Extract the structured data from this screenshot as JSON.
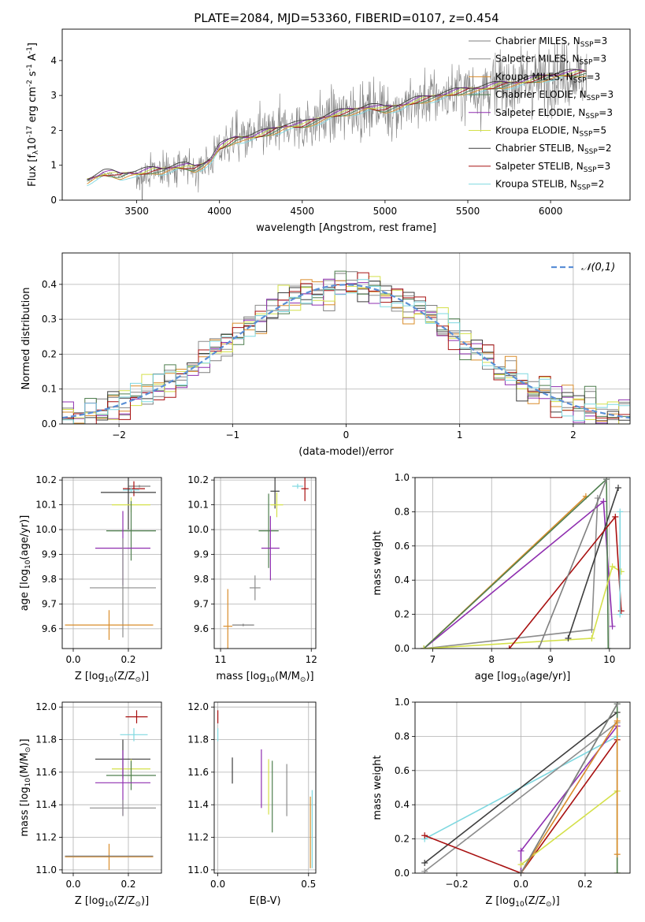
{
  "figure_title": "PLATE=2084, MJD=53360, FIBERID=0107, z=0.454",
  "colors": {
    "series": [
      "#7f7f7f",
      "#8c8c8c",
      "#d98c2a",
      "#4f7f4f",
      "#8f2fb0",
      "#d4e04a",
      "#3d3d3d",
      "#a81010",
      "#7fd8e0"
    ],
    "gaussian": "#5b8fd6",
    "grid": "#b0b0b0"
  },
  "chart_data": [
    {
      "id": "spectrum",
      "type": "line",
      "xlabel": "wavelength [Angstrom, rest frame]",
      "ylabel": "Flux [f$_\\lambda$10$^{-17}$ erg cm$^{-2}$ s$^{-1}$ A$^{-1}$]",
      "xlim": [
        3050,
        6480
      ],
      "ylim": [
        0,
        4.9
      ],
      "xticks": [
        3500,
        4000,
        4500,
        5000,
        5500,
        6000
      ],
      "yticks": [
        0,
        1,
        2,
        3,
        4
      ],
      "legend_position": "right",
      "legend": [
        {
          "name": "Chabrier MILES, N$_{SSP}$=3"
        },
        {
          "name": "Salpeter MILES, N$_{SSP}$=3"
        },
        {
          "name": "Kroupa MILES, N$_{SSP}$=3"
        },
        {
          "name": "Chabrier ELODIE, N$_{SSP}$=3"
        },
        {
          "name": "Salpeter ELODIE, N$_{SSP}$=3"
        },
        {
          "name": "Kroupa ELODIE, N$_{SSP}$=5"
        },
        {
          "name": "Chabrier STELIB, N$_{SSP}$=2"
        },
        {
          "name": "Salpeter STELIB, N$_{SSP}$=3"
        },
        {
          "name": "Kroupa STELIB, N$_{SSP}$=2"
        }
      ],
      "continuum": {
        "x": [
          3200,
          3250,
          3300,
          3350,
          3400,
          3450,
          3500,
          3550,
          3600,
          3650,
          3700,
          3750,
          3800,
          3850,
          3900,
          3950,
          4000,
          4100,
          4200,
          4300,
          4400,
          4500,
          4600,
          4700,
          4800,
          4900,
          5000,
          5100,
          5200,
          5300,
          5400,
          5500,
          5600,
          5700,
          5800,
          5900,
          6000,
          6100,
          6200
        ],
        "y": [
          0.55,
          0.65,
          0.75,
          0.75,
          0.7,
          0.75,
          0.75,
          0.8,
          0.85,
          0.85,
          0.9,
          0.95,
          0.95,
          0.9,
          1.0,
          1.15,
          1.5,
          1.75,
          1.8,
          1.95,
          2.1,
          2.15,
          2.3,
          2.45,
          2.55,
          2.65,
          2.6,
          2.7,
          2.85,
          2.95,
          3.05,
          3.15,
          3.2,
          3.3,
          3.35,
          3.45,
          3.55,
          3.6,
          3.65
        ]
      },
      "data_start": 3200,
      "data_end": 6220
    },
    {
      "id": "residuals",
      "type": "histogram",
      "xlabel": "(data-model)/error",
      "ylabel": "Normed distribution",
      "xlim": [
        -2.5,
        2.5
      ],
      "ylim": [
        0,
        0.49
      ],
      "xticks": [
        -2,
        -1,
        0,
        1,
        2
      ],
      "yticks": [
        0.0,
        0.1,
        0.2,
        0.3,
        0.4
      ],
      "legend": [
        {
          "name": "$\\mathcal{N}(0,1)$"
        }
      ],
      "legend_position": "top-right",
      "bin_width": 0.1
    },
    {
      "id": "age-vs-Z",
      "type": "errorbar",
      "xlabel": "Z [log$_{10}$(Z/Z$_\\odot$)]",
      "ylabel": "age  [log$_{10}$(age/yr)]",
      "xlim": [
        -0.04,
        0.32
      ],
      "ylim": [
        9.52,
        10.21
      ],
      "xticks": [
        0.0,
        0.2
      ],
      "yticks": [
        9.6,
        9.7,
        9.8,
        9.9,
        10.0,
        10.1,
        10.2
      ],
      "points": [
        {
          "x": 0.24,
          "y": 10.175,
          "xerr": 0.04,
          "yerr": 0.005,
          "c": 0
        },
        {
          "x": 0.22,
          "y": 10.165,
          "xerr": 0.04,
          "yerr": 0.03,
          "c": 7
        },
        {
          "x": 0.21,
          "y": 10.16,
          "xerr": 0.03,
          "yerr": 0.01,
          "c": 8
        },
        {
          "x": 0.2,
          "y": 10.15,
          "xerr": 0.1,
          "yerr": 0.15,
          "c": 6
        },
        {
          "x": 0.21,
          "y": 10.1,
          "xerr": 0.07,
          "yerr": 0.03,
          "c": 5
        },
        {
          "x": 0.21,
          "y": 9.995,
          "xerr": 0.09,
          "yerr": 0.12,
          "c": 3
        },
        {
          "x": 0.18,
          "y": 9.925,
          "xerr": 0.1,
          "yerr": 0.15,
          "c": 4
        },
        {
          "x": 0.18,
          "y": 9.765,
          "xerr": 0.12,
          "yerr": 0.2,
          "c": 1
        },
        {
          "x": 0.13,
          "y": 9.615,
          "xerr": 0.16,
          "yerr": 0.06,
          "c": 2
        }
      ]
    },
    {
      "id": "age-vs-mass",
      "type": "errorbar",
      "xlabel": "mass [log$_{10}$(M/M$_\\odot$)]",
      "ylabel": "",
      "xlim": [
        10.93,
        12.05
      ],
      "ylim": [
        9.52,
        10.21
      ],
      "xticks": [
        11,
        12
      ],
      "yticks": [
        9.6,
        9.7,
        9.8,
        9.9,
        10.0,
        10.1,
        10.2
      ],
      "points": [
        {
          "x": 11.85,
          "y": 10.175,
          "xerr": 0.06,
          "yerr": 0.01,
          "c": 8
        },
        {
          "x": 11.93,
          "y": 10.165,
          "xerr": 0.04,
          "yerr": 0.05,
          "c": 7
        },
        {
          "x": 11.6,
          "y": 10.155,
          "xerr": 0.05,
          "yerr": 0.07,
          "c": 6
        },
        {
          "x": 11.62,
          "y": 10.1,
          "xerr": 0.07,
          "yerr": 0.05,
          "c": 5
        },
        {
          "x": 11.53,
          "y": 9.995,
          "xerr": 0.11,
          "yerr": 0.15,
          "c": 3
        },
        {
          "x": 11.55,
          "y": 9.925,
          "xerr": 0.1,
          "yerr": 0.13,
          "c": 4
        },
        {
          "x": 11.38,
          "y": 9.765,
          "xerr": 0.06,
          "yerr": 0.05,
          "c": 1
        },
        {
          "x": 11.08,
          "y": 9.61,
          "xerr": 0.05,
          "yerr": 0.15,
          "c": 2
        },
        {
          "x": 11.25,
          "y": 9.615,
          "xerr": 0.12,
          "yerr": 0.005,
          "c": 0
        }
      ]
    },
    {
      "id": "weight-vs-age",
      "type": "line",
      "xlabel": "age  [log$_{10}$(age/yr)]",
      "ylabel": "mass weight",
      "xlim": [
        6.7,
        10.35
      ],
      "ylim": [
        0,
        1.0
      ],
      "xticks": [
        7,
        8,
        9,
        10
      ],
      "yticks": [
        0.0,
        0.2,
        0.4,
        0.6,
        0.8,
        1.0
      ],
      "series": [
        {
          "c": 2,
          "x": [
            6.85,
            9.6
          ],
          "y": [
            0.0,
            0.89
          ]
        },
        {
          "c": 1,
          "x": [
            6.85,
            9.7,
            9.8
          ],
          "y": [
            0.0,
            0.11,
            0.88
          ]
        },
        {
          "c": 4,
          "x": [
            6.85,
            9.9,
            10.05
          ],
          "y": [
            0.0,
            0.86,
            0.13
          ]
        },
        {
          "c": 3,
          "x": [
            6.85,
            9.95,
            9.98
          ],
          "y": [
            0.0,
            0.99,
            0.0
          ]
        },
        {
          "c": 5,
          "x": [
            6.85,
            9.7,
            10.05,
            10.2
          ],
          "y": [
            0.0,
            0.06,
            0.48,
            0.45
          ]
        },
        {
          "c": 6,
          "x": [
            9.3,
            10.15
          ],
          "y": [
            0.06,
            0.94
          ]
        },
        {
          "c": 7,
          "x": [
            8.3,
            10.1,
            10.2
          ],
          "y": [
            0.0,
            0.77,
            0.22
          ]
        },
        {
          "c": 8,
          "x": [
            10.18,
            10.18
          ],
          "y": [
            0.8,
            0.2
          ]
        },
        {
          "c": 0,
          "x": [
            8.8,
            9.95
          ],
          "y": [
            0.0,
            0.99
          ]
        }
      ]
    },
    {
      "id": "mass-vs-Z",
      "type": "errorbar",
      "xlabel": "Z [log$_{10}$(Z/Z$_\\odot$)]",
      "ylabel": "mass [log$_{10}$(M/M$_\\odot$)]",
      "xlim": [
        -0.04,
        0.32
      ],
      "ylim": [
        10.98,
        12.03
      ],
      "xticks": [
        0.0,
        0.2
      ],
      "yticks": [
        11.0,
        11.2,
        11.4,
        11.6,
        11.8,
        12.0
      ],
      "points": [
        {
          "x": 0.23,
          "y": 11.94,
          "xerr": 0.04,
          "yerr": 0.04,
          "c": 7
        },
        {
          "x": 0.22,
          "y": 11.83,
          "xerr": 0.05,
          "yerr": 0.04,
          "c": 8
        },
        {
          "x": 0.18,
          "y": 11.68,
          "xerr": 0.1,
          "yerr": 0.12,
          "c": 6
        },
        {
          "x": 0.21,
          "y": 11.62,
          "xerr": 0.07,
          "yerr": 0.06,
          "c": 5
        },
        {
          "x": 0.21,
          "y": 11.58,
          "xerr": 0.09,
          "yerr": 0.09,
          "c": 3
        },
        {
          "x": 0.18,
          "y": 11.535,
          "xerr": 0.1,
          "yerr": 0.2,
          "c": 4
        },
        {
          "x": 0.18,
          "y": 11.38,
          "xerr": 0.12,
          "yerr": 0.05,
          "c": 1
        },
        {
          "x": 0.13,
          "y": 11.08,
          "xerr": 0.16,
          "yerr": 0.08,
          "c": 2
        },
        {
          "x": 0.13,
          "y": 11.085,
          "xerr": 0.16,
          "yerr": 0.005,
          "c": 0
        }
      ]
    },
    {
      "id": "mass-vs-ebv",
      "type": "errorbar",
      "xlabel": "E(B-V)",
      "ylabel": "",
      "xlim": [
        -0.02,
        0.54
      ],
      "ylim": [
        10.98,
        12.03
      ],
      "xticks": [
        0.0,
        0.5
      ],
      "yticks": [
        11.0,
        11.2,
        11.4,
        11.6,
        11.8,
        12.0
      ],
      "points": [
        {
          "x": 0.0,
          "y": 11.94,
          "xerr": 0,
          "yerr": 0.04,
          "c": 7
        },
        {
          "x": 0.0,
          "y": 11.83,
          "xerr": 0,
          "yerr": 0.04,
          "c": 8
        },
        {
          "x": 0.08,
          "y": 11.61,
          "xerr": 0,
          "yerr": 0.08,
          "c": 6
        },
        {
          "x": 0.28,
          "y": 11.51,
          "xerr": 0,
          "yerr": 0.17,
          "c": 5
        },
        {
          "x": 0.3,
          "y": 11.45,
          "xerr": 0,
          "yerr": 0.22,
          "c": 3
        },
        {
          "x": 0.24,
          "y": 11.56,
          "xerr": 0,
          "yerr": 0.18,
          "c": 4
        },
        {
          "x": 0.38,
          "y": 11.49,
          "xerr": 0,
          "yerr": 0.16,
          "c": 1
        },
        {
          "x": 0.51,
          "y": 11.23,
          "xerr": 0,
          "yerr": 0.22,
          "c": 2
        },
        {
          "x": 0.52,
          "y": 11.25,
          "xerr": 0,
          "yerr": 0.24,
          "c": 8
        }
      ]
    },
    {
      "id": "weight-vs-Z",
      "type": "line",
      "xlabel": "Z [log$_{10}$(Z/Z$_\\odot$)]",
      "ylabel": "mass weight",
      "xlim": [
        -0.33,
        0.34
      ],
      "ylim": [
        0,
        1.0
      ],
      "xticks": [
        -0.2,
        0.0,
        0.2
      ],
      "yticks": [
        0.0,
        0.2,
        0.4,
        0.6,
        0.8,
        1.0
      ],
      "series": [
        {
          "c": 8,
          "x": [
            -0.3,
            0.3
          ],
          "y": [
            0.2,
            0.8
          ]
        },
        {
          "c": 6,
          "x": [
            -0.3,
            0.3
          ],
          "y": [
            0.06,
            0.94
          ]
        },
        {
          "c": 1,
          "x": [
            -0.3,
            0.3
          ],
          "y": [
            0.01,
            0.88
          ]
        },
        {
          "c": 7,
          "x": [
            -0.3,
            0.0,
            0.3
          ],
          "y": [
            0.22,
            0.0,
            0.78
          ]
        },
        {
          "c": 4,
          "x": [
            0.0,
            0.0,
            0.3
          ],
          "y": [
            0.0,
            0.13,
            0.86
          ]
        },
        {
          "c": 5,
          "x": [
            0.0,
            0.3,
            0.3
          ],
          "y": [
            0.05,
            0.48,
            0.0
          ]
        },
        {
          "c": 3,
          "x": [
            0.0,
            0.3,
            0.3
          ],
          "y": [
            0.0,
            0.99,
            0.0
          ]
        },
        {
          "c": 2,
          "x": [
            0.0,
            0.3,
            0.3
          ],
          "y": [
            0.0,
            0.89,
            0.11
          ]
        },
        {
          "c": 0,
          "x": [
            0.0,
            0.3
          ],
          "y": [
            0.0,
            0.99
          ]
        }
      ]
    }
  ]
}
